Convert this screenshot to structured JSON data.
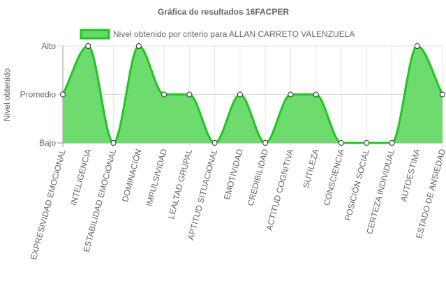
{
  "chart_data": {
    "type": "area",
    "title": "Gráfica de resultados 16FACPER",
    "ylabel": "Nivel obtenido",
    "xlabel": "",
    "y_ticks": [
      "Bajo",
      "Promedio",
      "Alto"
    ],
    "ylim": [
      0,
      2
    ],
    "categories": [
      "EXPRESIVIDAD EMOCIONAL",
      "INTELIGENCIA",
      "ESTABILIDAD EMOCIONAL",
      "DOMINACIÓN",
      "IMPULSIVIDAD",
      "LEALTAD GRUPAL",
      "APTITUD SITUACIONAL",
      "EMOTIVIDAD",
      "CREDIBILIDAD",
      "ACTITUD COGNITIVA",
      "SUTILEZA",
      "CONSCIENCIA",
      "POSICIÓN SOCIAL",
      "CERTEZA INDIVIDUAL",
      "AUTOESTIMA",
      "ESTADO DE ANSIEDAD"
    ],
    "series": [
      {
        "name": "Nivel obtenido por criterio para ALLAN CARRETO VALENZUELA",
        "values": [
          1,
          2,
          0,
          2,
          1,
          1,
          0,
          1,
          0,
          1,
          1,
          0,
          0,
          0,
          2,
          1
        ],
        "color": "#21c421",
        "fill": "#66d966"
      }
    ],
    "grid": true,
    "legend": "top"
  }
}
